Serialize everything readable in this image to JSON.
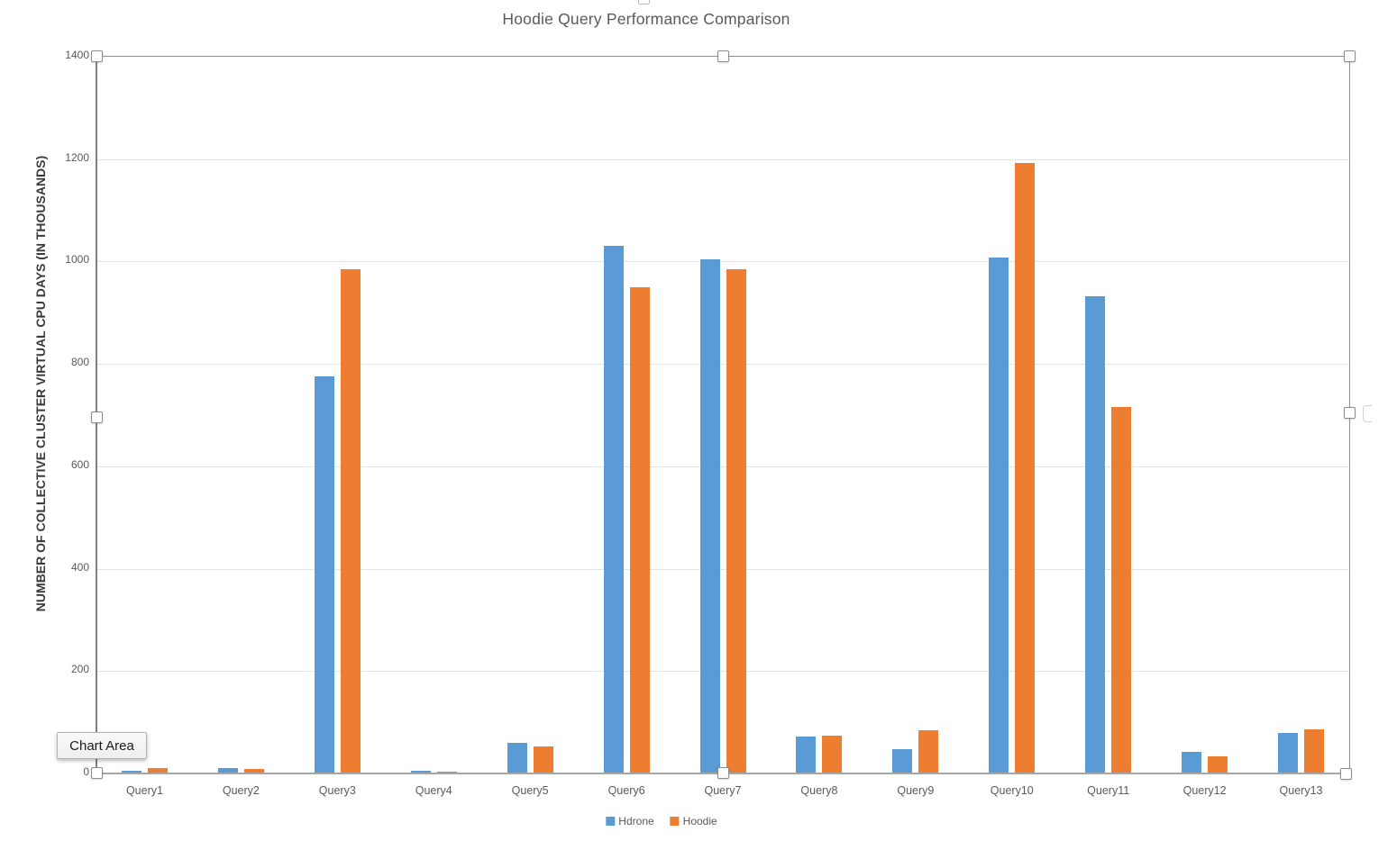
{
  "title": "Hoodie Query Performance Comparison",
  "tooltip": {
    "label": "Chart Area"
  },
  "colors": {
    "series_blue": "#5B9BD5",
    "series_orange": "#ED7D31",
    "title_text": "#595959",
    "axis_text": "#595959",
    "gridline": "#E4E4E4",
    "axis_line": "#7F7F7F",
    "selection_border": "#8F8F8F"
  },
  "chart_data": {
    "type": "bar",
    "title": "Hoodie Query Performance Comparison",
    "xlabel": "",
    "ylabel": "NUMBER OF COLLECTIVE CLUSTER VIRTUAL CPU DAYS (IN THOUSANDS)",
    "ylim": [
      0,
      1400
    ],
    "ytick_interval": 200,
    "yticks": [
      0,
      200,
      400,
      600,
      800,
      1000,
      1200,
      1400
    ],
    "grid": true,
    "legend_position": "bottom",
    "categories": [
      "Query1",
      "Query2",
      "Query3",
      "Query4",
      "Query5",
      "Query6",
      "Query7",
      "Query8",
      "Query9",
      "Query10",
      "Query11",
      "Query12",
      "Query13"
    ],
    "series": [
      {
        "name": "Hdrone",
        "color": "#5B9BD5",
        "values": [
          5,
          10,
          775,
          5,
          60,
          1030,
          1005,
          73,
          48,
          1008,
          933,
          42,
          80
        ]
      },
      {
        "name": "Hoodie",
        "color": "#ED7D31",
        "values": [
          10,
          8,
          985,
          4,
          52,
          950,
          985,
          74,
          85,
          1192,
          715,
          34,
          87
        ]
      }
    ]
  }
}
